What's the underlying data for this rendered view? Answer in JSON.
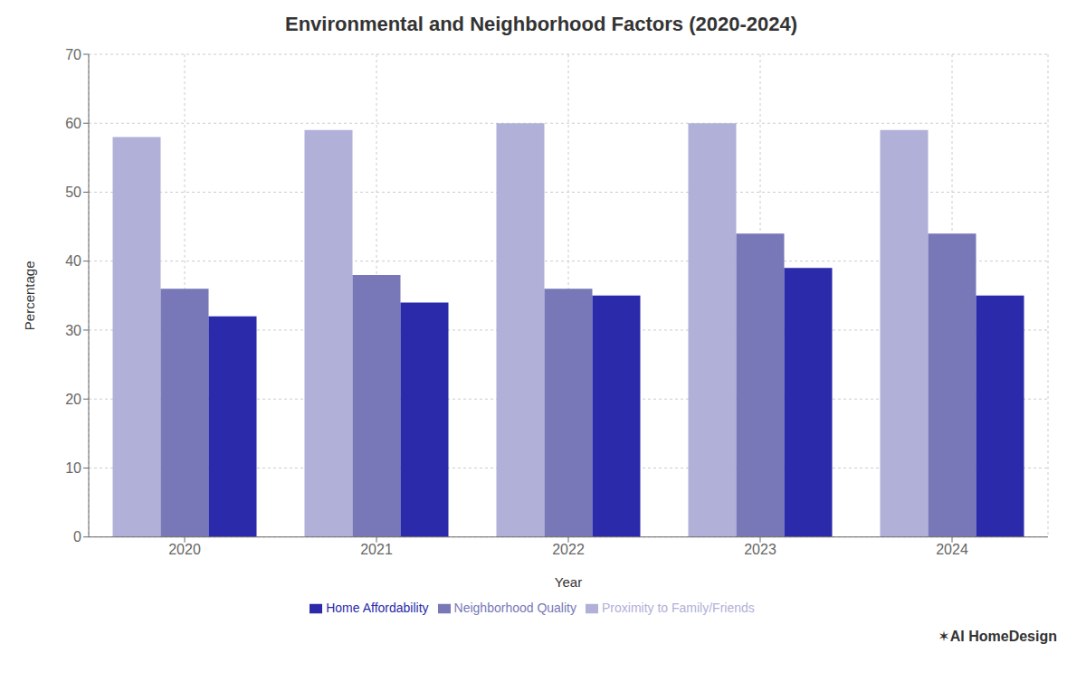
{
  "chart_data": {
    "type": "bar",
    "title": "Environmental and Neighborhood Factors (2020-2024)",
    "xlabel": "Year",
    "ylabel": "Percentage",
    "categories": [
      2020,
      2021,
      2022,
      2023,
      2024
    ],
    "series": [
      {
        "name": "Proximity to Family/Friends",
        "color": "#b0b0d8",
        "values": [
          58,
          59,
          60,
          60,
          59
        ]
      },
      {
        "name": "Neighborhood Quality",
        "color": "#7878b8",
        "values": [
          36,
          38,
          36,
          44,
          44
        ]
      },
      {
        "name": "Home Affordability",
        "color": "#2a2aaa",
        "values": [
          32,
          34,
          35,
          39,
          35
        ]
      }
    ],
    "ylim": [
      0,
      70
    ],
    "yticks": [
      0,
      10,
      20,
      30,
      40,
      50,
      60,
      70
    ],
    "grid": true,
    "legend": "bottom",
    "annotations": [
      "✶AI HomeDesign"
    ]
  }
}
